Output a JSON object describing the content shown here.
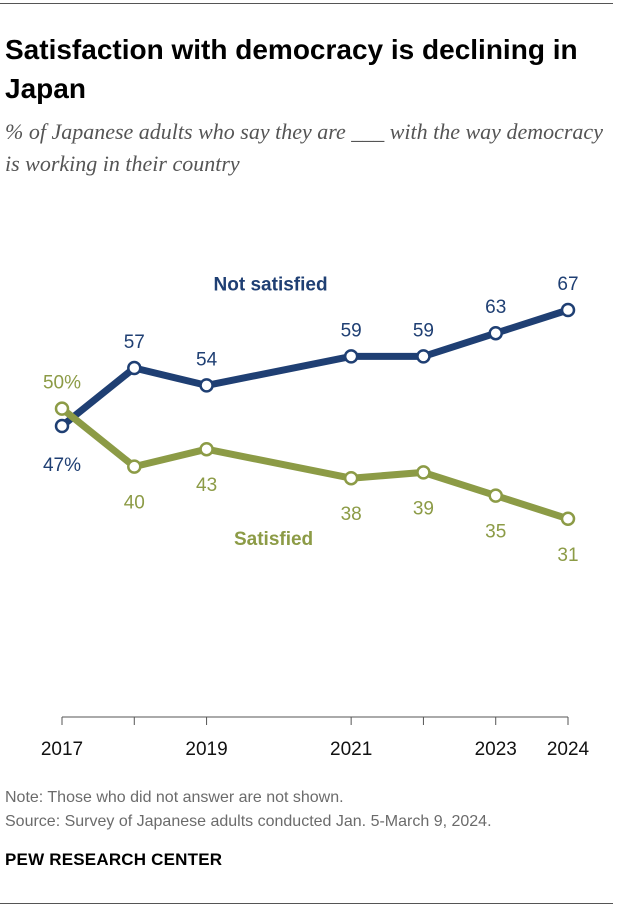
{
  "header": {
    "title": "Satisfaction with democracy is declining in Japan",
    "subtitle": "% of Japanese adults who say they are ___ with the way democracy is working in their country"
  },
  "chart_data": {
    "type": "line",
    "title": "Satisfaction with democracy is declining in Japan",
    "x": [
      2017,
      2018,
      2019,
      2021,
      2022,
      2023,
      2024
    ],
    "x_tick_labels": [
      "2017",
      "",
      "2019",
      "2021",
      "",
      "2023",
      "2024"
    ],
    "series": [
      {
        "name": "Not satisfied",
        "color": "#1f3f73",
        "values": [
          47,
          57,
          54,
          59,
          59,
          63,
          67
        ],
        "labels": [
          "47%",
          "57",
          "54",
          "59",
          "59",
          "63",
          "67"
        ]
      },
      {
        "name": "Satisfied",
        "color": "#8c9b46",
        "values": [
          50,
          40,
          43,
          38,
          39,
          35,
          31
        ],
        "labels": [
          "50%",
          "40",
          "43",
          "38",
          "39",
          "35",
          "31"
        ]
      }
    ],
    "xlabel": "",
    "ylabel": "",
    "ylim": [
      0,
      100
    ],
    "grid": false,
    "legend": "direct labels on lines"
  },
  "footer": {
    "note": "Note: Those who did not answer are not shown.",
    "source": "Source: Survey of Japanese adults conducted Jan. 5-March 9, 2024.",
    "brand": "PEW RESEARCH CENTER"
  }
}
